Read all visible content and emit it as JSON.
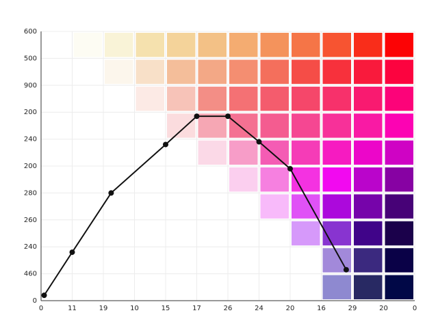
{
  "chart_data": {
    "type": "line",
    "x": [
      0.1,
      1,
      2.25,
      4,
      5,
      6,
      7,
      8,
      9.8
    ],
    "series": [
      {
        "color": "#111111",
        "values": [
          0.2,
          1.8,
          4.0,
          5.8,
          6.85,
          6.85,
          5.9,
          4.9,
          1.15
        ]
      }
    ],
    "xlim": [
      0,
      12
    ],
    "xticks": [
      {
        "value": 0,
        "label": "0"
      },
      {
        "value": 1,
        "label": "11"
      },
      {
        "value": 2,
        "label": "19"
      },
      {
        "value": 3,
        "label": "10"
      },
      {
        "value": 4,
        "label": "15"
      },
      {
        "value": 5,
        "label": "17"
      },
      {
        "value": 6,
        "label": "26"
      },
      {
        "value": 7,
        "label": "24"
      },
      {
        "value": 8,
        "label": "20"
      },
      {
        "value": 9,
        "label": "16"
      },
      {
        "value": 10,
        "label": "29"
      },
      {
        "value": 11,
        "label": "20"
      },
      {
        "value": 12,
        "label": "0"
      }
    ],
    "ylim": [
      0,
      10
    ],
    "yticks": [
      {
        "value": 0,
        "label": "0"
      },
      {
        "value": 1,
        "label": "460"
      },
      {
        "value": 2,
        "label": "240"
      },
      {
        "value": 3,
        "label": "260"
      },
      {
        "value": 4,
        "label": "280"
      },
      {
        "value": 5,
        "label": "200"
      },
      {
        "value": 6,
        "label": "240"
      },
      {
        "value": 7,
        "label": "200"
      },
      {
        "value": 8,
        "label": "900"
      },
      {
        "value": 9,
        "label": "500"
      },
      {
        "value": 10,
        "label": "600"
      }
    ],
    "grid": true
  }
}
